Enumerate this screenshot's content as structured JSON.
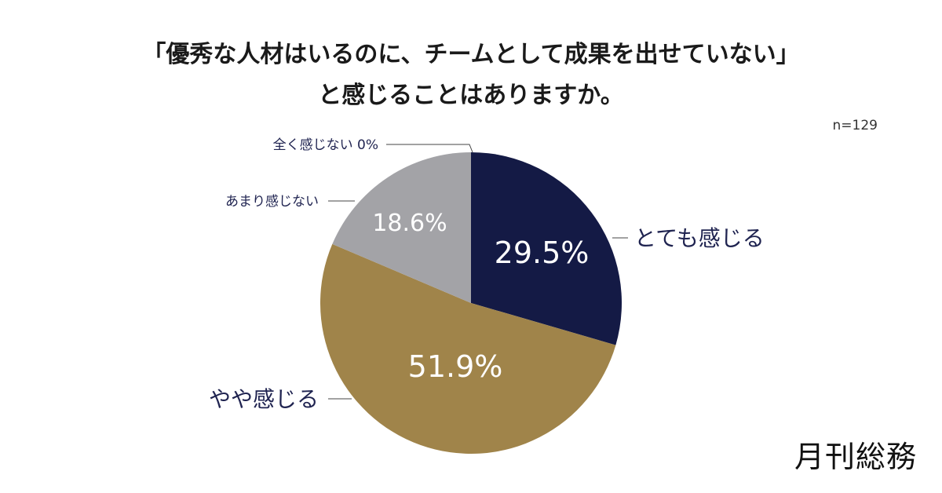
{
  "title_lines": [
    "「優秀な人材はいるのに、チームとして成果を出せていない」",
    "と感じることはありますか。"
  ],
  "sample_size": "n=129",
  "brand": "月刊総務",
  "colors": {
    "very": "#141a45",
    "somewhat": "#a0844a",
    "not_much": "#a3a3a7",
    "not_at_all": "#cfcfcf",
    "label_text": "#1f2350"
  },
  "chart_data": {
    "type": "pie",
    "title": "「優秀な人材はいるのに、チームとして成果を出せていない」と感じることはありますか。",
    "note": "n=129",
    "slices": [
      {
        "label": "とても感じる",
        "value": 29.5,
        "value_label": "29.5%",
        "color": "#141a45"
      },
      {
        "label": "やや感じる",
        "value": 51.9,
        "value_label": "51.9%",
        "color": "#a0844a"
      },
      {
        "label": "あまり感じない",
        "value": 18.6,
        "value_label": "18.6%",
        "color": "#a3a3a7"
      },
      {
        "label": "全く感じない",
        "value": 0,
        "value_label": "0%",
        "color": "#cfcfcf"
      }
    ],
    "start_angle": "12 o'clock",
    "direction": "clockwise"
  }
}
